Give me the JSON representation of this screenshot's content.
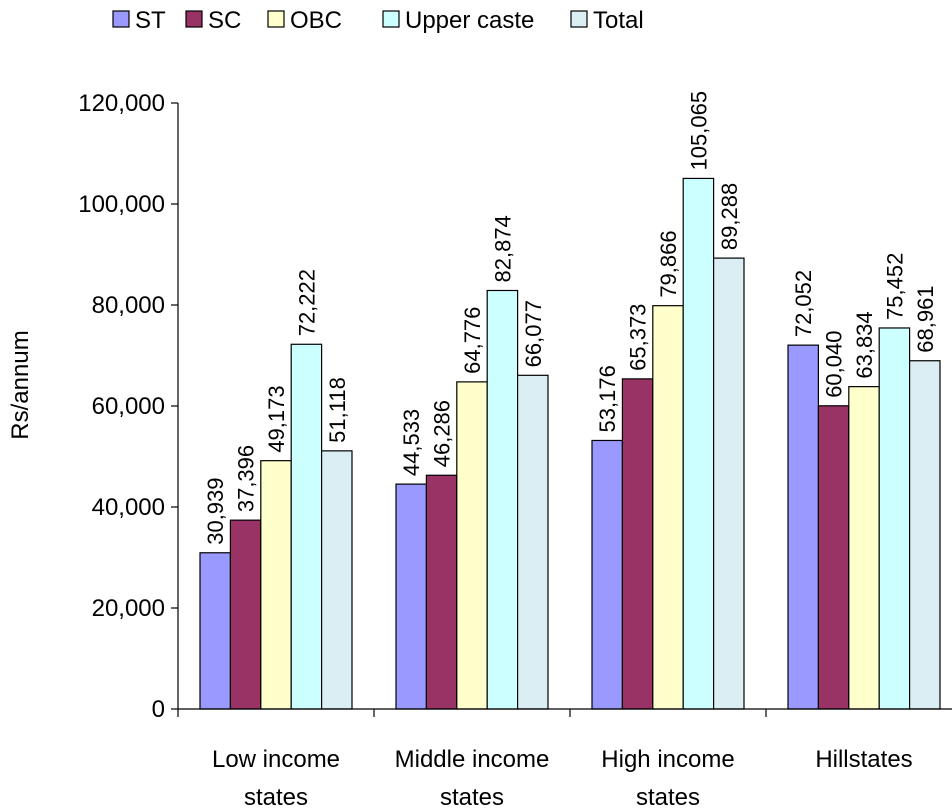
{
  "chart_data": {
    "type": "bar",
    "title": "",
    "xlabel": "",
    "ylabel": "Rs/annum",
    "ylim": [
      0,
      120000
    ],
    "yticks": [
      0,
      20000,
      40000,
      60000,
      80000,
      100000,
      120000
    ],
    "ytick_labels": [
      "0",
      "20,000",
      "40,000",
      "60,000",
      "80,000",
      "100,000",
      "120,000"
    ],
    "grid": false,
    "legend_position": "top",
    "categories": [
      [
        "Low income",
        "states"
      ],
      [
        "Middle income",
        "states"
      ],
      [
        "High income",
        "states"
      ],
      [
        "Hillstates"
      ]
    ],
    "series": [
      {
        "name": "ST",
        "color": "#9999ff",
        "values": [
          30939,
          44533,
          53176,
          72052
        ],
        "labels": [
          "30,939",
          "44,533",
          "53,176",
          "72,052"
        ]
      },
      {
        "name": "SC",
        "color": "#993366",
        "values": [
          37396,
          46286,
          65373,
          60040
        ],
        "labels": [
          "37,396",
          "46,286",
          "65,373",
          "60,040"
        ]
      },
      {
        "name": "OBC",
        "color": "#ffffcc",
        "values": [
          49173,
          64776,
          79866,
          63834
        ],
        "labels": [
          "49,173",
          "64,776",
          "79,866",
          "63,834"
        ]
      },
      {
        "name": "Upper caste",
        "color": "#ccffff",
        "values": [
          72222,
          82874,
          105065,
          75452
        ],
        "labels": [
          "72,222",
          "82,874",
          "105,065",
          "75,452"
        ]
      },
      {
        "name": "Total",
        "color": "#daeef3",
        "values": [
          51118,
          66077,
          89288,
          68961
        ],
        "labels": [
          "51,118",
          "66,077",
          "89,288",
          "68,961"
        ]
      }
    ]
  }
}
